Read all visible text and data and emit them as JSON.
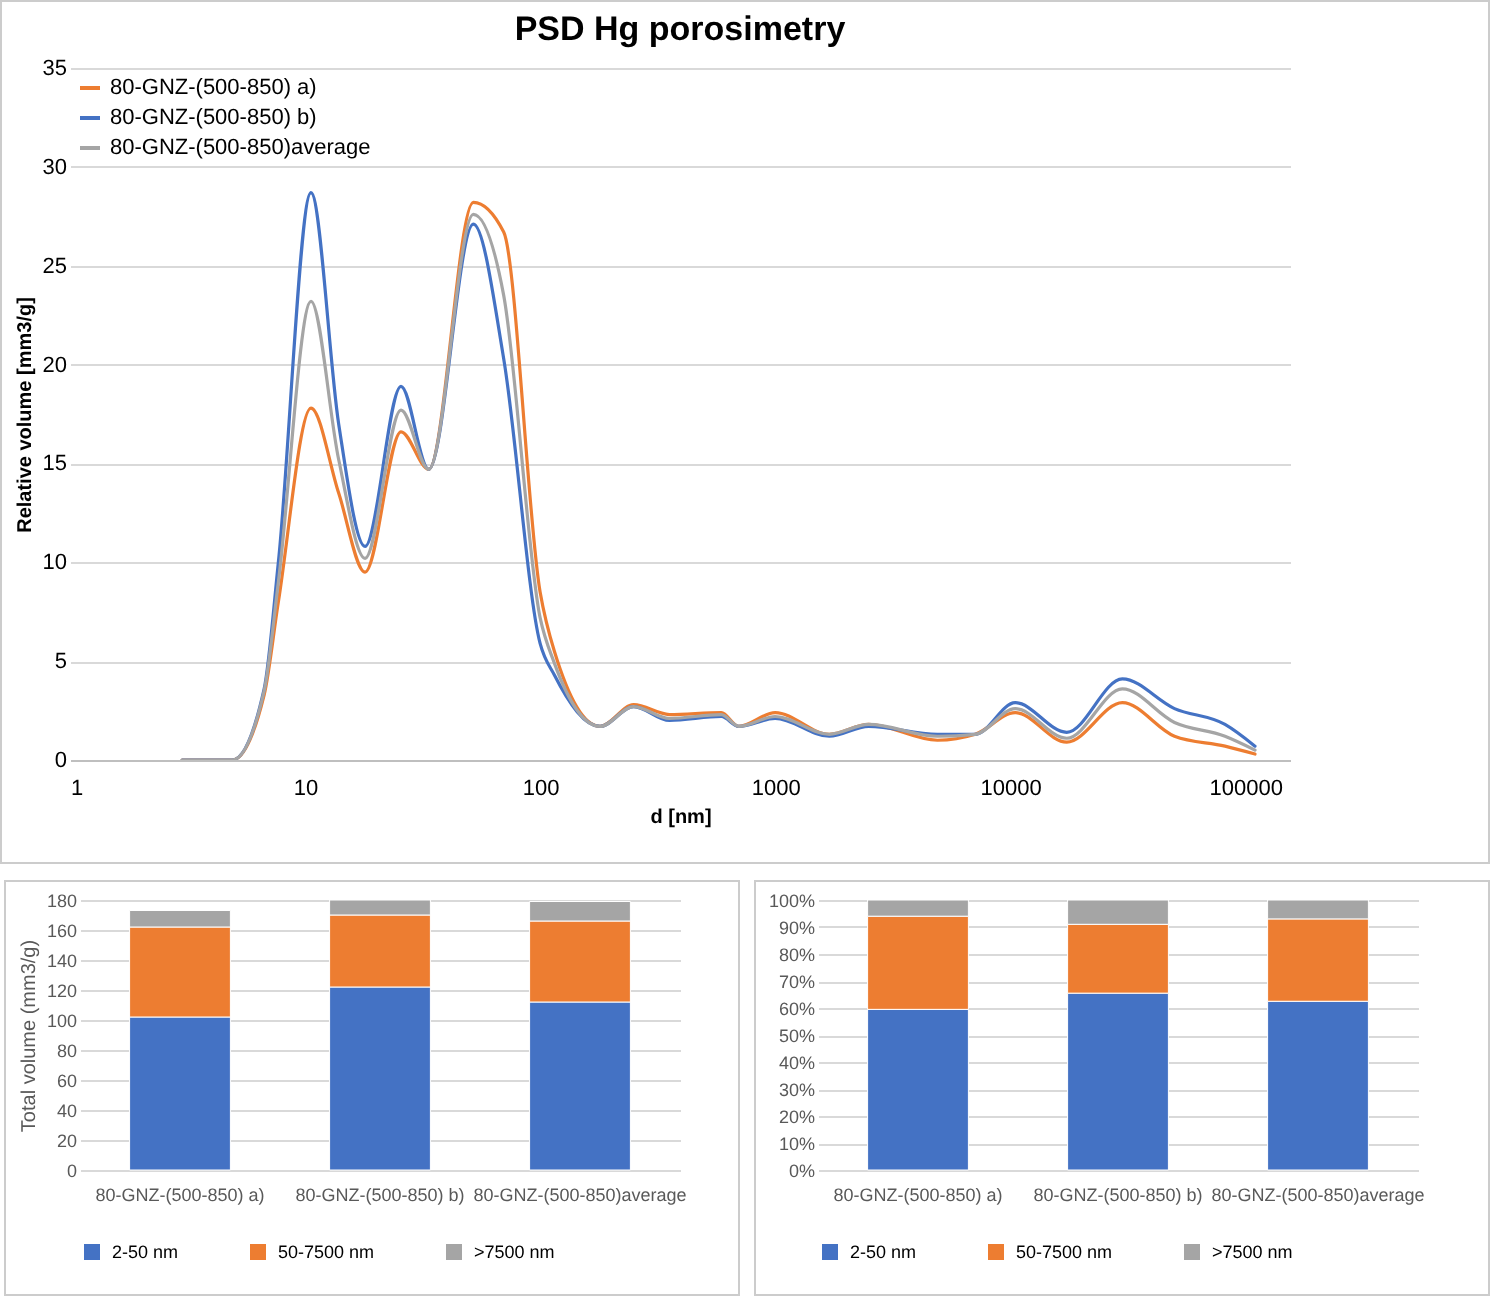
{
  "chart_data": [
    {
      "type": "line",
      "title": "PSD Hg porosimetry",
      "xlabel": "d [nm]",
      "ylabel": "Relative volume [mm3/g]",
      "log": "x",
      "grid": "y",
      "legend": "top left",
      "line_style": "solid",
      "xlim": [
        1,
        155000
      ],
      "xticks": [
        1,
        10,
        100,
        1000,
        10000,
        100000
      ],
      "ylim": [
        0,
        35
      ],
      "yticks": [
        0,
        5,
        10,
        15,
        20,
        25,
        30,
        35
      ],
      "x": [
        3,
        4.9,
        6.7,
        7.7,
        10.6,
        13.9,
        18,
        25.6,
        33.6,
        52,
        70,
        100,
        115,
        180,
        250,
        355,
        590,
        700,
        1000,
        1700,
        2500,
        4900,
        7100,
        10500,
        17400,
        30000,
        50000,
        82000,
        110000
      ],
      "series": [
        {
          "name": "80-GNZ-(500-850) a)",
          "color": "#ed7d31",
          "values": [
            0,
            0,
            3.3,
            8,
            17.8,
            13.5,
            9.5,
            16.6,
            14.7,
            28.2,
            26.7,
            8.5,
            5.5,
            1.7,
            2.8,
            2.3,
            2.4,
            1.7,
            2.4,
            1.3,
            1.8,
            1.0,
            1.3,
            2.4,
            0.9,
            2.9,
            1.2,
            0.7,
            0.3
          ]
        },
        {
          "name": "80-GNZ-(500-850) b)",
          "color": "#4472c4",
          "values": [
            0,
            0,
            3.6,
            10,
            28.7,
            17,
            10.8,
            18.9,
            14.7,
            27.1,
            20.3,
            5.9,
            4.3,
            1.7,
            2.7,
            2.0,
            2.2,
            1.7,
            2.1,
            1.2,
            1.7,
            1.3,
            1.3,
            2.9,
            1.4,
            4.1,
            2.6,
            1.8,
            0.7
          ]
        },
        {
          "name": "80-GNZ-(500-850)average",
          "color": "#a5a5a5",
          "values": [
            0,
            0,
            3.5,
            9,
            23.2,
            15.2,
            10.2,
            17.7,
            14.7,
            27.6,
            23.5,
            7.2,
            4.9,
            1.7,
            2.7,
            2.1,
            2.3,
            1.7,
            2.2,
            1.3,
            1.8,
            1.2,
            1.3,
            2.6,
            1.1,
            3.6,
            1.9,
            1.2,
            0.5
          ]
        }
      ]
    },
    {
      "type": "bar",
      "stacked": true,
      "ylabel": "Total volume (mm3/g)",
      "grid": "y",
      "legend": "bottom",
      "categories": [
        "80-GNZ-(500-850) a)",
        "80-GNZ-(500-850) b)",
        "80-GNZ-(500-850)average"
      ],
      "ylim": [
        0,
        180
      ],
      "yticks": [
        0,
        20,
        40,
        60,
        80,
        100,
        120,
        140,
        160,
        180
      ],
      "series": [
        {
          "name": "2-50 nm",
          "color": "#4472c4",
          "values": [
            102,
            122,
            112
          ]
        },
        {
          "name": "50-7500 nm",
          "color": "#ed7d31",
          "values": [
            60,
            48,
            54
          ]
        },
        {
          "name": ">7500 nm",
          "color": "#a5a5a5",
          "values": [
            11,
            10,
            13
          ]
        }
      ]
    },
    {
      "type": "bar",
      "stacked": true,
      "grid": "y",
      "legend": "bottom",
      "categories": [
        "80-GNZ-(500-850) a)",
        "80-GNZ-(500-850) b)",
        "80-GNZ-(500-850)average"
      ],
      "ylim": [
        0,
        100
      ],
      "yticks": [
        {
          "value": 0,
          "label": "0%"
        },
        {
          "value": 10,
          "label": "10%"
        },
        {
          "value": 20,
          "label": "20%"
        },
        {
          "value": 30,
          "label": "30%"
        },
        {
          "value": 40,
          "label": "40%"
        },
        {
          "value": 50,
          "label": "50%"
        },
        {
          "value": 60,
          "label": "60%"
        },
        {
          "value": 70,
          "label": "70%"
        },
        {
          "value": 80,
          "label": "80%"
        },
        {
          "value": 90,
          "label": "90%"
        },
        {
          "value": 100,
          "label": "100%"
        }
      ],
      "series": [
        {
          "name": "2-50 nm",
          "color": "#4472c4",
          "values": [
            59.5,
            65.5,
            62.5
          ]
        },
        {
          "name": "50-7500 nm",
          "color": "#ed7d31",
          "values": [
            34.5,
            25.5,
            30.5
          ]
        },
        {
          "name": ">7500 nm",
          "color": "#a5a5a5",
          "values": [
            6,
            9,
            7
          ]
        }
      ]
    }
  ]
}
